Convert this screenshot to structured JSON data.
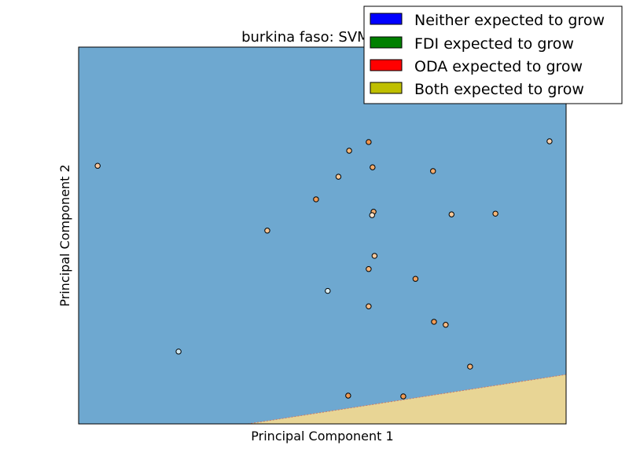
{
  "chart_data": {
    "type": "scatter",
    "title": "burkina faso: SVM Line",
    "xlabel": "Principal Component 1",
    "ylabel": "Principal Component 2",
    "xlim": [
      0,
      100
    ],
    "ylim": [
      0,
      100
    ],
    "grid": false,
    "ticks": "hidden",
    "legend": {
      "placement": "top-right",
      "entries": [
        {
          "label": "Neither expected to grow",
          "color": "#0000ff"
        },
        {
          "label": "FDI expected to grow",
          "color": "#008000"
        },
        {
          "label": "ODA expected to grow",
          "color": "#ff0000"
        },
        {
          "label": "Both expected to grow",
          "color": "#bfbf00"
        }
      ]
    },
    "decision_regions": [
      {
        "class": "Neither expected to grow",
        "color": "#6ea8d0"
      },
      {
        "class": "Both expected to grow",
        "color": "#e8d595",
        "boundary_line": [
          [
            34.7,
            0
          ],
          [
            100,
            13.1
          ]
        ]
      }
    ],
    "points": [
      {
        "x": 3.9,
        "y": 68.5,
        "color": "#fbc9a0"
      },
      {
        "x": 20.5,
        "y": 19.2,
        "color": "#cfe7ef"
      },
      {
        "x": 38.7,
        "y": 51.3,
        "color": "#f5c493"
      },
      {
        "x": 48.7,
        "y": 59.6,
        "color": "#f19d58"
      },
      {
        "x": 51.1,
        "y": 35.3,
        "color": "#d9eef3"
      },
      {
        "x": 53.3,
        "y": 65.6,
        "color": "#f6c898"
      },
      {
        "x": 55.5,
        "y": 72.5,
        "color": "#f6b879"
      },
      {
        "x": 59.5,
        "y": 74.8,
        "color": "#f0954d"
      },
      {
        "x": 60.3,
        "y": 68.1,
        "color": "#f2aa6a"
      },
      {
        "x": 60.5,
        "y": 56.3,
        "color": "#f3ae70"
      },
      {
        "x": 60.2,
        "y": 55.4,
        "color": "#fce3cc"
      },
      {
        "x": 60.7,
        "y": 44.6,
        "color": "#f9c99d"
      },
      {
        "x": 59.5,
        "y": 41.1,
        "color": "#f4b479"
      },
      {
        "x": 59.5,
        "y": 31.2,
        "color": "#f7bd88"
      },
      {
        "x": 69.1,
        "y": 38.5,
        "color": "#f2a25f"
      },
      {
        "x": 72.7,
        "y": 67.1,
        "color": "#f3ac6e"
      },
      {
        "x": 76.5,
        "y": 55.6,
        "color": "#f7c89a"
      },
      {
        "x": 85.5,
        "y": 55.8,
        "color": "#f6b778"
      },
      {
        "x": 96.6,
        "y": 75.0,
        "color": "#f8d1ae"
      },
      {
        "x": 72.9,
        "y": 27.1,
        "color": "#f29c55"
      },
      {
        "x": 80.3,
        "y": 15.2,
        "color": "#f6b47a"
      },
      {
        "x": 55.3,
        "y": 7.5,
        "color": "#f09a53"
      },
      {
        "x": 66.6,
        "y": 7.3,
        "color": "#f09a53"
      },
      {
        "x": 75.3,
        "y": 26.3,
        "color": "#f7ba84"
      }
    ]
  }
}
